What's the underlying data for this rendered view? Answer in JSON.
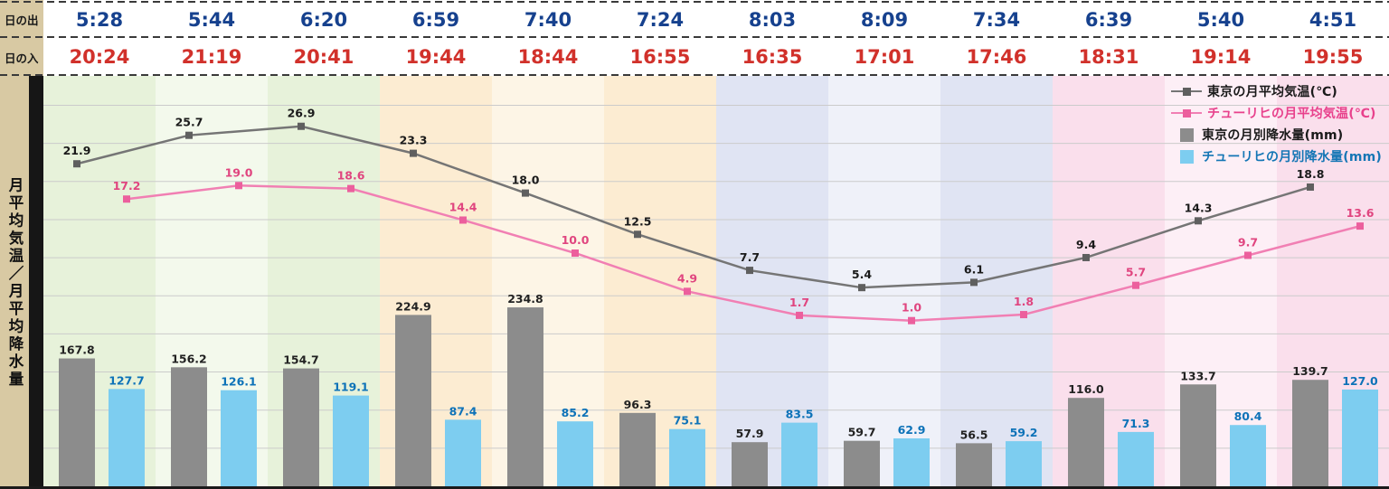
{
  "header": {
    "sunrise_label": "日の出",
    "sunset_label": "日の入",
    "sunrise_times": [
      "5:28",
      "5:44",
      "6:20",
      "6:59",
      "7:40",
      "7:24",
      "8:03",
      "8:09",
      "7:34",
      "6:39",
      "5:40",
      "4:51"
    ],
    "sunset_times": [
      "20:24",
      "21:19",
      "20:41",
      "19:44",
      "18:44",
      "16:55",
      "16:35",
      "17:01",
      "17:46",
      "18:31",
      "19:14",
      "19:55"
    ],
    "sunrise_color": "#16418e",
    "sunset_color": "#d1312b"
  },
  "sidebar": {
    "axis_label": "月平均気温／月平均降水量"
  },
  "legend": {
    "position": "top-right",
    "items": [
      {
        "label": "東京の月平均気温(℃)",
        "type": "line",
        "color": "#757575",
        "text_color": "#1a1a1a"
      },
      {
        "label": "チューリヒの月平均気温(℃)",
        "type": "line",
        "color": "#f17fb3",
        "text_color": "#e8418c"
      },
      {
        "label": "東京の月別降水量(mm)",
        "type": "bar",
        "color": "#8c8c8c",
        "text_color": "#1a1a1a"
      },
      {
        "label": "チューリヒの月別降水量(mm)",
        "type": "bar",
        "color": "#7dcdf0",
        "text_color": "#1576b5"
      }
    ]
  },
  "chart_data": {
    "type": "combo",
    "columns": 12,
    "title": "",
    "ylabel": "月平均気温／月平均降水量",
    "grid": true,
    "legend_position": "top-right",
    "temp_axis": {
      "unit": "℃",
      "min": 0,
      "max": 30
    },
    "precip_axis": {
      "unit": "mm",
      "min": 0,
      "gridline_interval_mm": 50
    },
    "series": [
      {
        "name": "東京の月平均気温(℃)",
        "type": "line",
        "color": "#757575",
        "marker_color": "#5f5f5f",
        "label_color": "#1a1a1a",
        "values": [
          21.9,
          25.7,
          26.9,
          23.3,
          18.0,
          12.5,
          7.7,
          5.4,
          6.1,
          9.4,
          14.3,
          18.8
        ]
      },
      {
        "name": "チューリヒの月平均気温(℃)",
        "type": "line",
        "color": "#f17fb3",
        "marker_color": "#ec5f9d",
        "label_color": "#e0457f",
        "values": [
          17.2,
          19.0,
          18.6,
          14.4,
          10.0,
          4.9,
          1.7,
          1.0,
          1.8,
          5.7,
          9.7,
          13.6
        ]
      },
      {
        "name": "東京の月別降水量(mm)",
        "type": "bar",
        "color": "#8c8c8c",
        "label_color": "#222222",
        "values": [
          167.8,
          156.2,
          154.7,
          224.9,
          234.8,
          96.3,
          57.9,
          59.7,
          56.5,
          116.0,
          133.7,
          139.7
        ]
      },
      {
        "name": "チューリヒの月別降水量(mm)",
        "type": "bar",
        "color": "#7dcdf0",
        "label_color": "#0d72b8",
        "values": [
          127.7,
          126.1,
          119.1,
          87.4,
          85.2,
          75.1,
          83.5,
          62.9,
          59.2,
          71.3,
          80.4,
          127.0
        ]
      }
    ],
    "column_backgrounds": [
      "#e7f2da",
      "#f3f9ec",
      "#e7f2da",
      "#fcecd2",
      "#fdf5e6",
      "#fcecd2",
      "#e0e4f3",
      "#eff1f9",
      "#e0e4f3",
      "#fadfec",
      "#fdeff6",
      "#fadfec"
    ]
  }
}
